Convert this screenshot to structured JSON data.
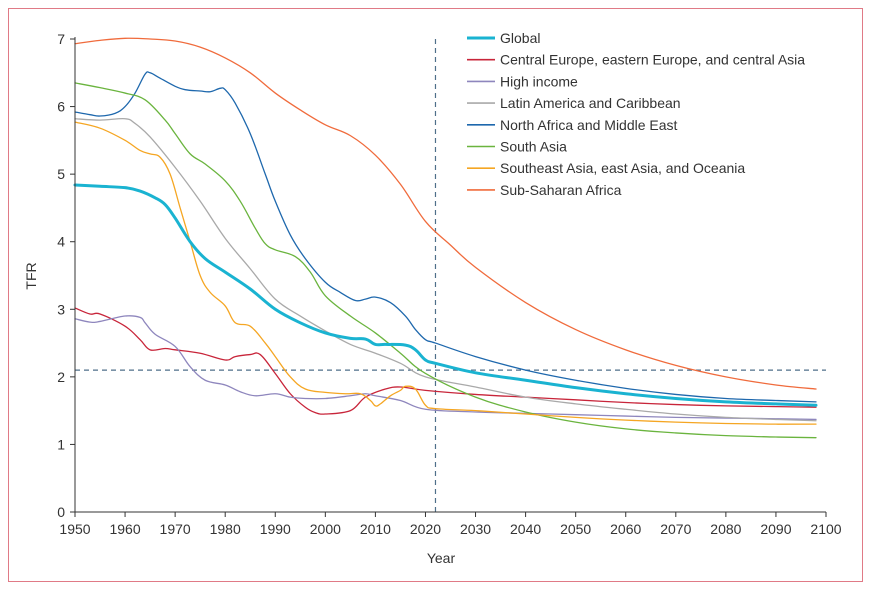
{
  "chart_data": {
    "type": "line",
    "xlabel": "Year",
    "ylabel": "TFR",
    "xlim": [
      1950,
      2100
    ],
    "ylim": [
      0,
      7
    ],
    "xticks": [
      1950,
      1960,
      1970,
      1980,
      1990,
      2000,
      2010,
      2020,
      2030,
      2040,
      2050,
      2060,
      2070,
      2080,
      2090,
      2100
    ],
    "yticks": [
      0,
      1,
      2,
      3,
      4,
      5,
      6,
      7
    ],
    "reference_lines": {
      "vertical_x": 2022,
      "horizontal_y": 2.1
    },
    "legend_position": "top-right",
    "series": [
      {
        "name": "Global",
        "color": "#1ab3d1",
        "width": 3,
        "points": [
          [
            1950,
            4.84
          ],
          [
            1955,
            4.82
          ],
          [
            1960,
            4.8
          ],
          [
            1963,
            4.75
          ],
          [
            1966,
            4.65
          ],
          [
            1968,
            4.55
          ],
          [
            1970,
            4.35
          ],
          [
            1973,
            4.0
          ],
          [
            1976,
            3.75
          ],
          [
            1980,
            3.55
          ],
          [
            1985,
            3.3
          ],
          [
            1990,
            3.0
          ],
          [
            1995,
            2.8
          ],
          [
            2000,
            2.65
          ],
          [
            2005,
            2.57
          ],
          [
            2008,
            2.56
          ],
          [
            2010,
            2.48
          ],
          [
            2012,
            2.48
          ],
          [
            2016,
            2.47
          ],
          [
            2018,
            2.4
          ],
          [
            2020,
            2.25
          ],
          [
            2022,
            2.2
          ],
          [
            2030,
            2.06
          ],
          [
            2040,
            1.95
          ],
          [
            2050,
            1.84
          ],
          [
            2060,
            1.75
          ],
          [
            2070,
            1.68
          ],
          [
            2080,
            1.63
          ],
          [
            2090,
            1.6
          ],
          [
            2098,
            1.58
          ]
        ]
      },
      {
        "name": "Central Europe, eastern Europe, and central Asia",
        "color": "#c8253a",
        "width": 1.3,
        "points": [
          [
            1950,
            3.02
          ],
          [
            1953,
            2.93
          ],
          [
            1955,
            2.93
          ],
          [
            1960,
            2.75
          ],
          [
            1963,
            2.55
          ],
          [
            1965,
            2.4
          ],
          [
            1968,
            2.42
          ],
          [
            1970,
            2.4
          ],
          [
            1975,
            2.35
          ],
          [
            1980,
            2.25
          ],
          [
            1982,
            2.3
          ],
          [
            1985,
            2.33
          ],
          [
            1987,
            2.33
          ],
          [
            1990,
            2.05
          ],
          [
            1993,
            1.75
          ],
          [
            1996,
            1.55
          ],
          [
            1998,
            1.47
          ],
          [
            2000,
            1.45
          ],
          [
            2005,
            1.5
          ],
          [
            2008,
            1.7
          ],
          [
            2012,
            1.82
          ],
          [
            2015,
            1.85
          ],
          [
            2020,
            1.8
          ],
          [
            2030,
            1.74
          ],
          [
            2040,
            1.7
          ],
          [
            2050,
            1.66
          ],
          [
            2060,
            1.62
          ],
          [
            2070,
            1.59
          ],
          [
            2080,
            1.57
          ],
          [
            2090,
            1.56
          ],
          [
            2098,
            1.55
          ]
        ]
      },
      {
        "name": "High income",
        "color": "#8e86bd",
        "width": 1.3,
        "points": [
          [
            1950,
            2.86
          ],
          [
            1953,
            2.81
          ],
          [
            1955,
            2.82
          ],
          [
            1960,
            2.9
          ],
          [
            1963,
            2.88
          ],
          [
            1964,
            2.8
          ],
          [
            1966,
            2.63
          ],
          [
            1970,
            2.45
          ],
          [
            1973,
            2.15
          ],
          [
            1976,
            1.95
          ],
          [
            1980,
            1.88
          ],
          [
            1983,
            1.78
          ],
          [
            1986,
            1.72
          ],
          [
            1990,
            1.75
          ],
          [
            1993,
            1.7
          ],
          [
            1996,
            1.68
          ],
          [
            2000,
            1.68
          ],
          [
            2005,
            1.72
          ],
          [
            2008,
            1.75
          ],
          [
            2010,
            1.72
          ],
          [
            2015,
            1.65
          ],
          [
            2020,
            1.52
          ],
          [
            2030,
            1.48
          ],
          [
            2040,
            1.46
          ],
          [
            2050,
            1.44
          ],
          [
            2060,
            1.42
          ],
          [
            2070,
            1.4
          ],
          [
            2080,
            1.39
          ],
          [
            2090,
            1.38
          ],
          [
            2098,
            1.37
          ]
        ]
      },
      {
        "name": "Latin America and Caribbean",
        "color": "#a9a9a9",
        "width": 1.3,
        "points": [
          [
            1950,
            5.82
          ],
          [
            1955,
            5.8
          ],
          [
            1960,
            5.82
          ],
          [
            1962,
            5.75
          ],
          [
            1965,
            5.55
          ],
          [
            1970,
            5.1
          ],
          [
            1975,
            4.6
          ],
          [
            1980,
            4.05
          ],
          [
            1985,
            3.6
          ],
          [
            1990,
            3.15
          ],
          [
            1995,
            2.9
          ],
          [
            2000,
            2.68
          ],
          [
            2005,
            2.48
          ],
          [
            2010,
            2.35
          ],
          [
            2015,
            2.2
          ],
          [
            2020,
            2.0
          ],
          [
            2030,
            1.85
          ],
          [
            2040,
            1.7
          ],
          [
            2050,
            1.6
          ],
          [
            2060,
            1.52
          ],
          [
            2070,
            1.45
          ],
          [
            2080,
            1.4
          ],
          [
            2090,
            1.37
          ],
          [
            2098,
            1.35
          ]
        ]
      },
      {
        "name": "North Africa and Middle East",
        "color": "#1e68ad",
        "width": 1.3,
        "points": [
          [
            1950,
            5.92
          ],
          [
            1953,
            5.88
          ],
          [
            1955,
            5.86
          ],
          [
            1958,
            5.9
          ],
          [
            1960,
            6.0
          ],
          [
            1962,
            6.2
          ],
          [
            1964,
            6.48
          ],
          [
            1965,
            6.5
          ],
          [
            1967,
            6.42
          ],
          [
            1970,
            6.3
          ],
          [
            1972,
            6.25
          ],
          [
            1975,
            6.23
          ],
          [
            1977,
            6.22
          ],
          [
            1979,
            6.27
          ],
          [
            1980,
            6.25
          ],
          [
            1982,
            6.05
          ],
          [
            1985,
            5.6
          ],
          [
            1988,
            5.0
          ],
          [
            1990,
            4.6
          ],
          [
            1993,
            4.1
          ],
          [
            1996,
            3.75
          ],
          [
            2000,
            3.4
          ],
          [
            2003,
            3.25
          ],
          [
            2006,
            3.13
          ],
          [
            2008,
            3.15
          ],
          [
            2010,
            3.18
          ],
          [
            2013,
            3.1
          ],
          [
            2016,
            2.9
          ],
          [
            2018,
            2.7
          ],
          [
            2020,
            2.55
          ],
          [
            2022,
            2.5
          ],
          [
            2030,
            2.3
          ],
          [
            2040,
            2.1
          ],
          [
            2050,
            1.95
          ],
          [
            2060,
            1.83
          ],
          [
            2070,
            1.74
          ],
          [
            2080,
            1.68
          ],
          [
            2090,
            1.65
          ],
          [
            2098,
            1.63
          ]
        ]
      },
      {
        "name": "South Asia",
        "color": "#6ab43e",
        "width": 1.3,
        "points": [
          [
            1950,
            6.35
          ],
          [
            1955,
            6.28
          ],
          [
            1960,
            6.2
          ],
          [
            1964,
            6.1
          ],
          [
            1968,
            5.8
          ],
          [
            1970,
            5.6
          ],
          [
            1973,
            5.3
          ],
          [
            1976,
            5.15
          ],
          [
            1980,
            4.9
          ],
          [
            1983,
            4.6
          ],
          [
            1986,
            4.2
          ],
          [
            1988,
            3.97
          ],
          [
            1990,
            3.88
          ],
          [
            1994,
            3.78
          ],
          [
            1997,
            3.55
          ],
          [
            2000,
            3.2
          ],
          [
            2005,
            2.9
          ],
          [
            2010,
            2.65
          ],
          [
            2015,
            2.35
          ],
          [
            2020,
            2.05
          ],
          [
            2030,
            1.7
          ],
          [
            2040,
            1.48
          ],
          [
            2050,
            1.33
          ],
          [
            2060,
            1.23
          ],
          [
            2070,
            1.17
          ],
          [
            2080,
            1.13
          ],
          [
            2090,
            1.11
          ],
          [
            2098,
            1.1
          ]
        ]
      },
      {
        "name": "Southeast Asia, east Asia, and Oceania",
        "color": "#f5a623",
        "width": 1.3,
        "points": [
          [
            1950,
            5.77
          ],
          [
            1955,
            5.68
          ],
          [
            1960,
            5.5
          ],
          [
            1963,
            5.35
          ],
          [
            1965,
            5.3
          ],
          [
            1967,
            5.25
          ],
          [
            1969,
            5.0
          ],
          [
            1971,
            4.5
          ],
          [
            1973,
            4.0
          ],
          [
            1975,
            3.5
          ],
          [
            1977,
            3.25
          ],
          [
            1980,
            3.05
          ],
          [
            1982,
            2.8
          ],
          [
            1985,
            2.75
          ],
          [
            1988,
            2.5
          ],
          [
            1990,
            2.3
          ],
          [
            1993,
            2.0
          ],
          [
            1996,
            1.82
          ],
          [
            2000,
            1.77
          ],
          [
            2004,
            1.75
          ],
          [
            2007,
            1.75
          ],
          [
            2009,
            1.65
          ],
          [
            2010,
            1.57
          ],
          [
            2011,
            1.6
          ],
          [
            2013,
            1.72
          ],
          [
            2015,
            1.8
          ],
          [
            2016,
            1.86
          ],
          [
            2018,
            1.82
          ],
          [
            2020,
            1.58
          ],
          [
            2022,
            1.53
          ],
          [
            2030,
            1.5
          ],
          [
            2040,
            1.45
          ],
          [
            2050,
            1.4
          ],
          [
            2060,
            1.36
          ],
          [
            2070,
            1.33
          ],
          [
            2080,
            1.31
          ],
          [
            2090,
            1.3
          ],
          [
            2098,
            1.3
          ]
        ]
      },
      {
        "name": "Sub-Saharan Africa",
        "color": "#f06b3c",
        "width": 1.3,
        "points": [
          [
            1950,
            6.93
          ],
          [
            1955,
            6.98
          ],
          [
            1960,
            7.01
          ],
          [
            1965,
            7.0
          ],
          [
            1970,
            6.97
          ],
          [
            1975,
            6.88
          ],
          [
            1980,
            6.72
          ],
          [
            1985,
            6.5
          ],
          [
            1990,
            6.2
          ],
          [
            1995,
            5.95
          ],
          [
            2000,
            5.73
          ],
          [
            2005,
            5.57
          ],
          [
            2010,
            5.28
          ],
          [
            2015,
            4.85
          ],
          [
            2020,
            4.3
          ],
          [
            2025,
            3.95
          ],
          [
            2030,
            3.62
          ],
          [
            2040,
            3.1
          ],
          [
            2050,
            2.7
          ],
          [
            2060,
            2.4
          ],
          [
            2070,
            2.17
          ],
          [
            2080,
            2.0
          ],
          [
            2090,
            1.88
          ],
          [
            2098,
            1.82
          ]
        ]
      }
    ]
  }
}
